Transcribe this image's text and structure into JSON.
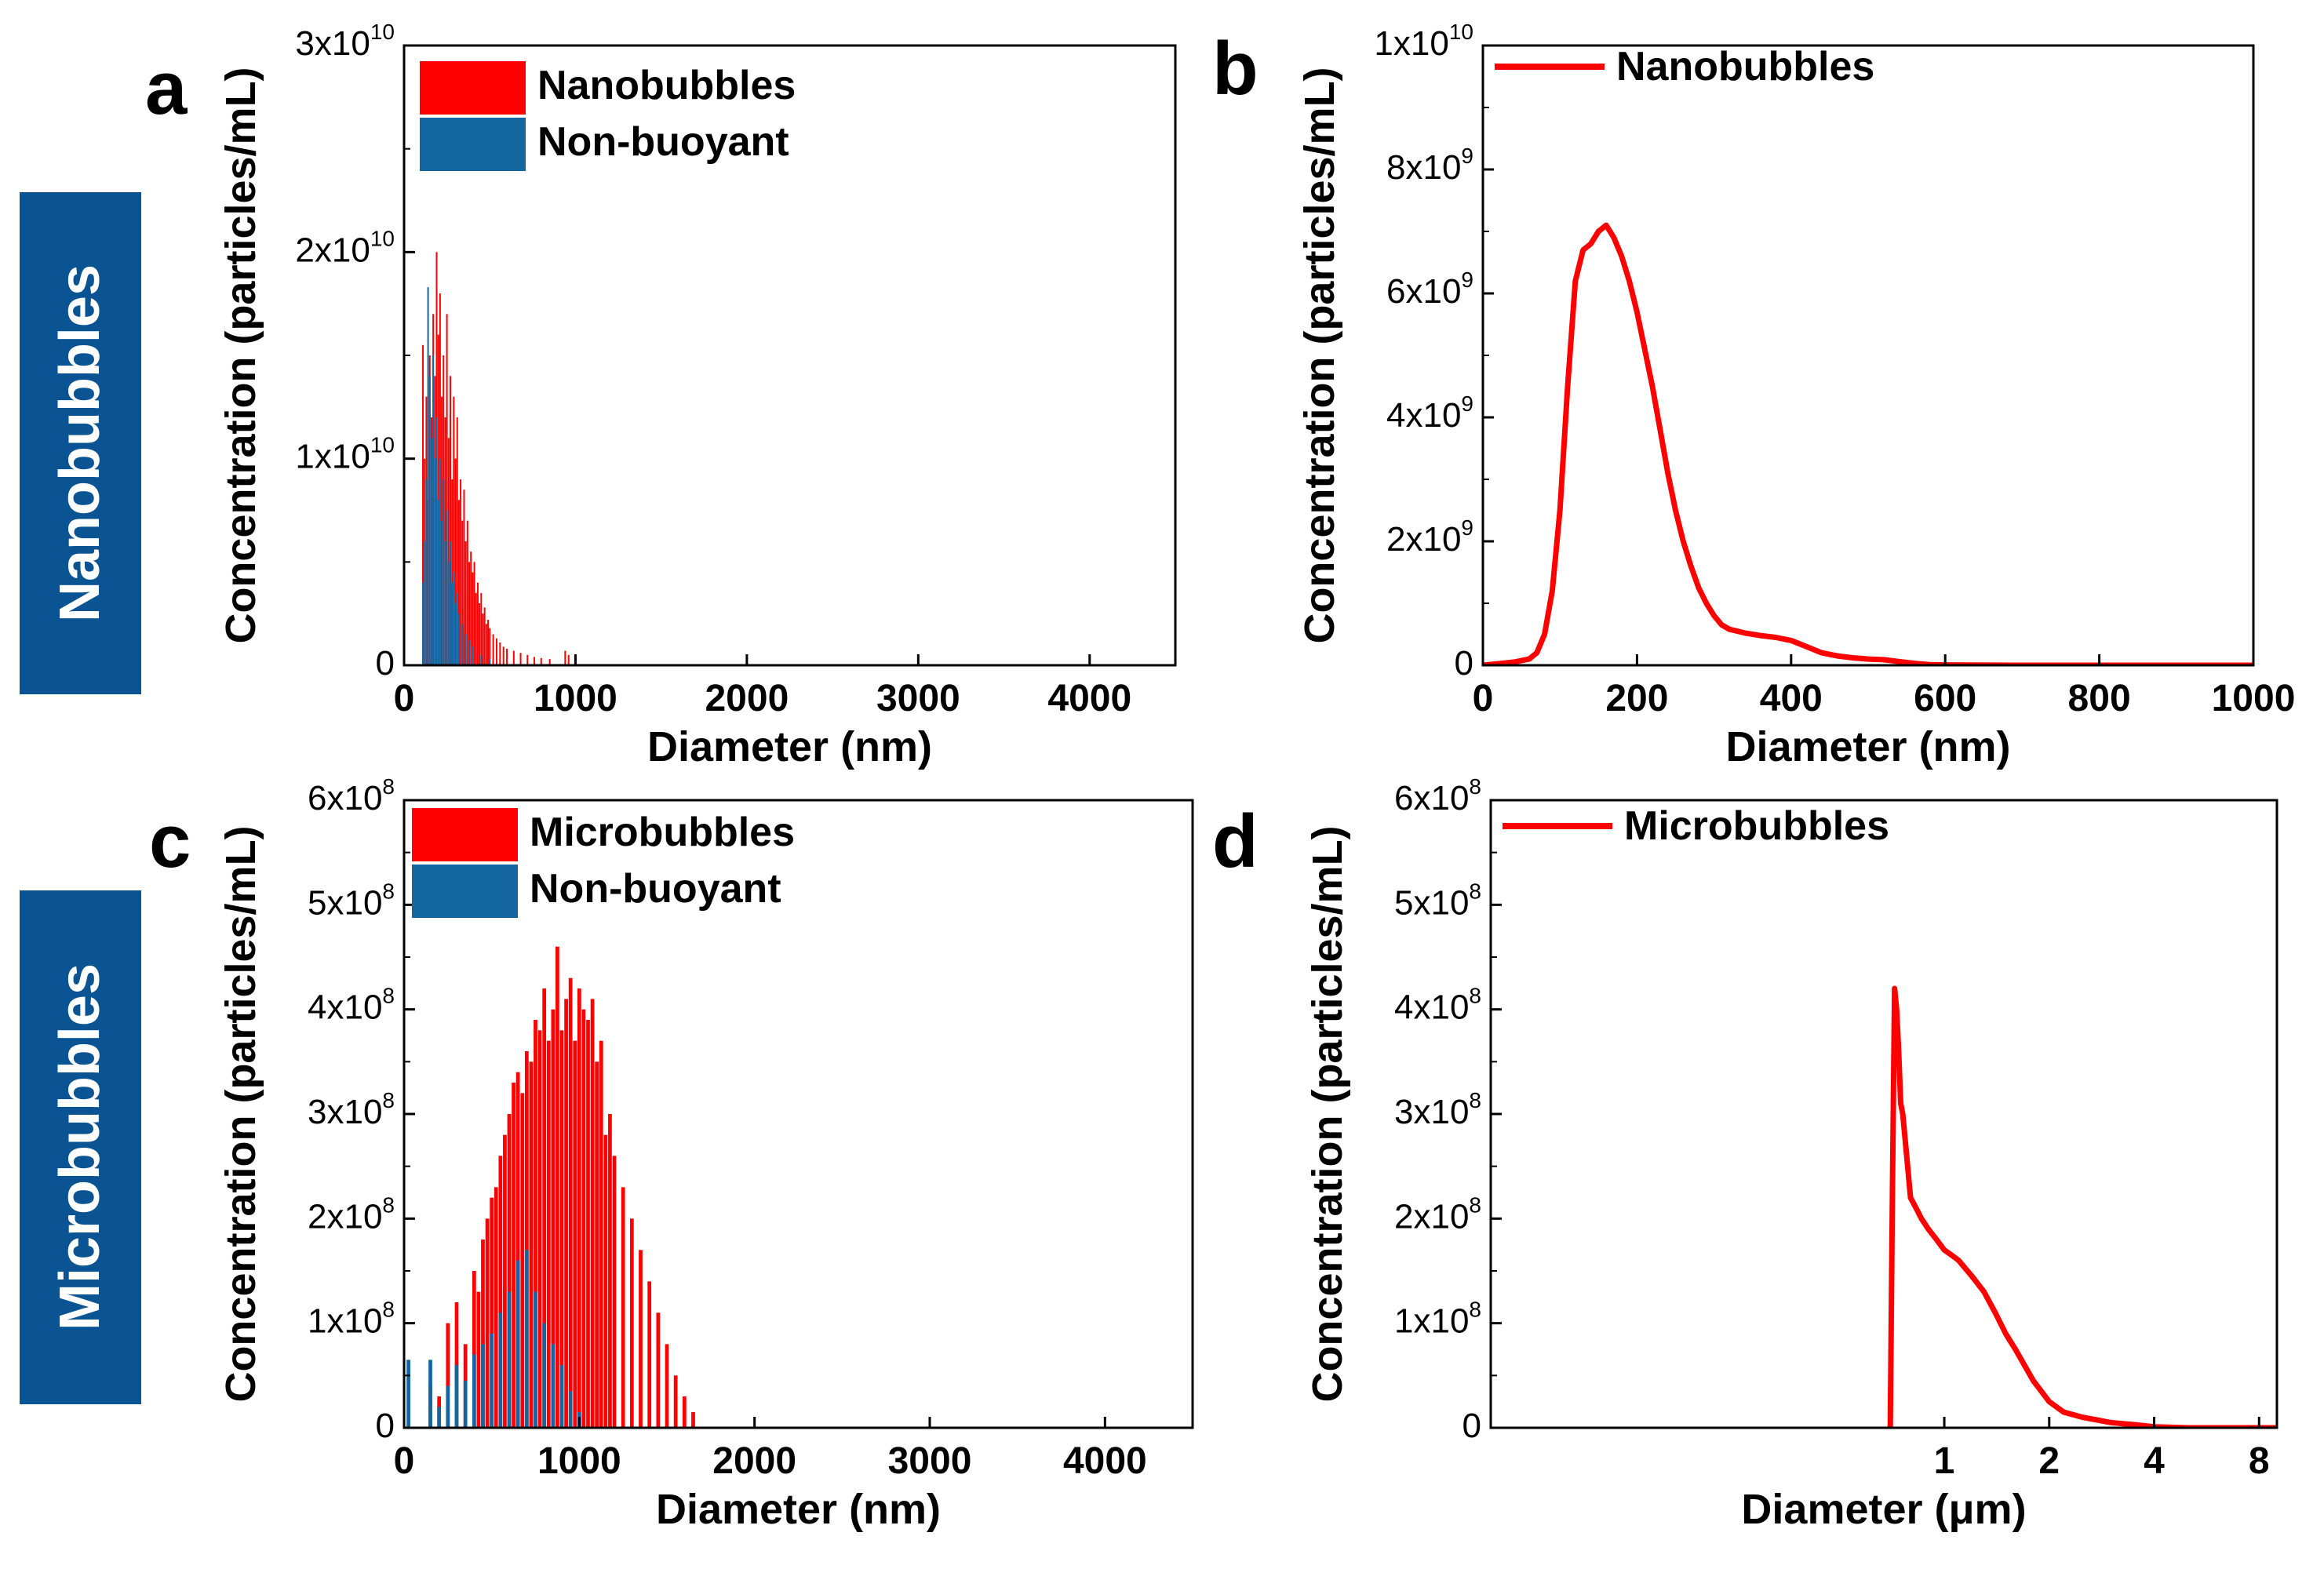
{
  "row_labels": [
    {
      "text": "Nanobubbles",
      "color": "#0a5494"
    },
    {
      "text": "Microbubbles",
      "color": "#0a5494"
    }
  ],
  "colors": {
    "red": "#ff0000",
    "blue": "#13669f"
  },
  "chart_data": [
    {
      "panel": "a",
      "type": "bar",
      "xlabel": "Diameter (nm)",
      "ylabel": "Concentration (particles/mL)",
      "xlim": [
        0,
        4500
      ],
      "ylim": [
        0,
        30000000000
      ],
      "xticks": [
        0,
        1000,
        2000,
        3000,
        4000
      ],
      "xtick_labels": [
        "0",
        "1000",
        "2000",
        "3000",
        "4000"
      ],
      "yticks": [
        0,
        10000000000,
        20000000000,
        30000000000
      ],
      "ytick_labels": [
        {
          "m": "0",
          "e": ""
        },
        {
          "m": "1x10",
          "e": "10"
        },
        {
          "m": "2x10",
          "e": "10"
        },
        {
          "m": "3x10",
          "e": "10"
        }
      ],
      "bin_width": 10,
      "legend_position": "top-left",
      "series": [
        {
          "name": "Nanobubbles",
          "color": "#ff0000",
          "x": [
            110,
            120,
            130,
            140,
            150,
            160,
            170,
            180,
            190,
            200,
            210,
            220,
            230,
            240,
            250,
            260,
            270,
            280,
            290,
            300,
            310,
            320,
            330,
            340,
            350,
            360,
            370,
            380,
            390,
            400,
            410,
            420,
            430,
            440,
            450,
            460,
            470,
            480,
            490,
            500,
            520,
            540,
            560,
            580,
            600,
            640,
            680,
            720,
            760,
            800,
            850,
            940,
            960
          ],
          "values": [
            15500000000,
            10000000000,
            13000000000,
            8000000000,
            15000000000,
            12000000000,
            17000000000,
            14000000000,
            20000000000,
            16000000000,
            18000000000,
            13000000000,
            15000000000,
            12000000000,
            17000000000,
            11000000000,
            14000000000,
            9000000000,
            13000000000,
            10000000000,
            12000000000,
            8000000000,
            9000000000,
            7000000000,
            8500000000,
            6000000000,
            7000000000,
            5000000000,
            5500000000,
            4500000000,
            5000000000,
            3500000000,
            4000000000,
            3000000000,
            3500000000,
            2500000000,
            2800000000,
            2000000000,
            2200000000,
            1800000000,
            1500000000,
            1300000000,
            1100000000,
            900000000,
            800000000,
            700000000,
            600000000,
            500000000,
            400000000,
            350000000,
            300000000,
            700000000,
            500000000
          ]
        },
        {
          "name": "Non-buoyant",
          "color": "#13669f",
          "x": [
            110,
            120,
            130,
            140,
            150,
            160,
            170,
            180,
            190,
            200,
            210,
            220,
            230,
            240,
            250,
            260,
            270,
            280,
            290,
            300,
            310,
            320,
            340,
            360,
            380,
            400,
            450,
            500,
            1000
          ],
          "values": [
            4000000000,
            6000000000,
            9000000000,
            18300000000,
            14000000000,
            11000000000,
            15000000000,
            10000000000,
            12000000000,
            8000000000,
            10000000000,
            7000000000,
            9000000000,
            6000000000,
            7500000000,
            5000000000,
            6000000000,
            4000000000,
            4500000000,
            3000000000,
            3500000000,
            2500000000,
            2000000000,
            1500000000,
            1200000000,
            900000000,
            500000000,
            300000000,
            500000000
          ]
        }
      ]
    },
    {
      "panel": "b",
      "type": "line",
      "xlabel": "Diameter (nm)",
      "ylabel": "Concentration (particles/mL)",
      "xlim": [
        0,
        1000
      ],
      "ylim": [
        0,
        10000000000
      ],
      "xticks": [
        0,
        200,
        400,
        600,
        800,
        1000
      ],
      "xtick_labels": [
        "0",
        "200",
        "400",
        "600",
        "800",
        "1000"
      ],
      "yticks": [
        0,
        2000000000,
        4000000000,
        6000000000,
        8000000000,
        10000000000
      ],
      "ytick_labels": [
        {
          "m": "0",
          "e": ""
        },
        {
          "m": "2x10",
          "e": "9"
        },
        {
          "m": "4x10",
          "e": "9"
        },
        {
          "m": "6x10",
          "e": "9"
        },
        {
          "m": "8x10",
          "e": "9"
        },
        {
          "m": "1x10",
          "e": "10"
        }
      ],
      "legend_position": "top-left",
      "series": [
        {
          "name": "Nanobubbles",
          "color": "#ff0000",
          "x": [
            0,
            40,
            60,
            70,
            80,
            90,
            100,
            110,
            120,
            130,
            140,
            150,
            160,
            170,
            180,
            190,
            200,
            210,
            220,
            230,
            240,
            250,
            260,
            270,
            280,
            290,
            300,
            310,
            320,
            330,
            340,
            360,
            380,
            400,
            420,
            440,
            460,
            480,
            500,
            520,
            540,
            560,
            580,
            600,
            700,
            800,
            1000
          ],
          "values": [
            0,
            50000000,
            100000000,
            200000000,
            500000000,
            1200000000,
            2500000000,
            4500000000,
            6200000000,
            6700000000,
            6800000000,
            7000000000,
            7100000000,
            6900000000,
            6600000000,
            6200000000,
            5700000000,
            5100000000,
            4500000000,
            3800000000,
            3100000000,
            2500000000,
            2000000000,
            1600000000,
            1250000000,
            1000000000,
            800000000,
            650000000,
            580000000,
            550000000,
            520000000,
            480000000,
            450000000,
            400000000,
            300000000,
            200000000,
            150000000,
            120000000,
            100000000,
            90000000,
            60000000,
            30000000,
            10000000,
            5000000,
            0,
            0,
            0
          ]
        }
      ]
    },
    {
      "panel": "c",
      "type": "bar",
      "xlabel": "Diameter (nm)",
      "ylabel": "Concentration (particles/mL)",
      "xlim": [
        0,
        4500
      ],
      "ylim": [
        0,
        600000000
      ],
      "xticks": [
        0,
        1000,
        2000,
        3000,
        4000
      ],
      "xtick_labels": [
        "0",
        "1000",
        "2000",
        "3000",
        "4000"
      ],
      "yticks": [
        0,
        100000000,
        200000000,
        300000000,
        400000000,
        500000000,
        600000000
      ],
      "ytick_labels": [
        {
          "m": "0",
          "e": ""
        },
        {
          "m": "1x10",
          "e": "8"
        },
        {
          "m": "2x10",
          "e": "8"
        },
        {
          "m": "3x10",
          "e": "8"
        },
        {
          "m": "4x10",
          "e": "8"
        },
        {
          "m": "5x10",
          "e": "8"
        },
        {
          "m": "6x10",
          "e": "8"
        }
      ],
      "bin_width": 25,
      "legend_position": "top-left",
      "series": [
        {
          "name": "Microbubbles",
          "color": "#ff0000",
          "x": [
            150,
            200,
            250,
            300,
            350,
            400,
            425,
            450,
            475,
            500,
            525,
            550,
            575,
            600,
            625,
            650,
            675,
            700,
            725,
            750,
            775,
            800,
            825,
            850,
            875,
            900,
            925,
            950,
            975,
            1000,
            1025,
            1050,
            1075,
            1100,
            1125,
            1150,
            1175,
            1200,
            1250,
            1300,
            1350,
            1400,
            1450,
            1500,
            1550,
            1600,
            1650
          ],
          "values": [
            40000000,
            30000000,
            100000000,
            120000000,
            80000000,
            150000000,
            130000000,
            180000000,
            200000000,
            220000000,
            230000000,
            260000000,
            280000000,
            300000000,
            330000000,
            340000000,
            320000000,
            360000000,
            350000000,
            390000000,
            380000000,
            420000000,
            370000000,
            400000000,
            460000000,
            380000000,
            410000000,
            430000000,
            370000000,
            420000000,
            400000000,
            390000000,
            410000000,
            350000000,
            370000000,
            280000000,
            300000000,
            260000000,
            230000000,
            200000000,
            170000000,
            140000000,
            110000000,
            80000000,
            50000000,
            30000000,
            15000000
          ]
        },
        {
          "name": "Non-buoyant",
          "color": "#13669f",
          "x": [
            25,
            150,
            200,
            250,
            300,
            350,
            400,
            450,
            500,
            550,
            600,
            650,
            700,
            750,
            800,
            850,
            900,
            950,
            1000
          ],
          "values": [
            65000000,
            65000000,
            20000000,
            40000000,
            60000000,
            45000000,
            70000000,
            80000000,
            90000000,
            110000000,
            130000000,
            160000000,
            170000000,
            130000000,
            100000000,
            80000000,
            60000000,
            35000000,
            15000000
          ]
        }
      ]
    },
    {
      "panel": "d",
      "type": "line",
      "xlabel": "Diameter (μm)",
      "ylabel": "Concentration (particles/mL)",
      "xlim": [
        0.05,
        9
      ],
      "xscale": "log",
      "ylim": [
        0,
        600000000
      ],
      "xticks": [
        1,
        2,
        4,
        8
      ],
      "xtick_labels": [
        "1",
        "2",
        "4",
        "8"
      ],
      "yticks": [
        0,
        100000000,
        200000000,
        300000000,
        400000000,
        500000000,
        600000000
      ],
      "ytick_labels": [
        {
          "m": "0",
          "e": ""
        },
        {
          "m": "1x10",
          "e": "8"
        },
        {
          "m": "2x10",
          "e": "8"
        },
        {
          "m": "3x10",
          "e": "8"
        },
        {
          "m": "4x10",
          "e": "8"
        },
        {
          "m": "5x10",
          "e": "8"
        },
        {
          "m": "6x10",
          "e": "8"
        }
      ],
      "legend_position": "top-left",
      "series": [
        {
          "name": "Microbubbles",
          "color": "#ff0000",
          "x": [
            0.7,
            0.71,
            0.72,
            0.73,
            0.74,
            0.75,
            0.76,
            0.78,
            0.8,
            0.83,
            0.86,
            0.9,
            0.95,
            1.0,
            1.05,
            1.1,
            1.2,
            1.3,
            1.4,
            1.5,
            1.6,
            1.8,
            2.0,
            2.2,
            2.5,
            3.0,
            3.5,
            4.0,
            5,
            6,
            7,
            8,
            9
          ],
          "values": [
            0,
            230000000,
            420000000,
            400000000,
            360000000,
            310000000,
            300000000,
            260000000,
            220000000,
            210000000,
            200000000,
            190000000,
            180000000,
            170000000,
            165000000,
            160000000,
            145000000,
            130000000,
            110000000,
            90000000,
            75000000,
            45000000,
            25000000,
            15000000,
            10000000,
            5000000,
            3000000,
            1000000,
            0,
            0,
            0,
            0,
            0
          ]
        }
      ]
    }
  ]
}
